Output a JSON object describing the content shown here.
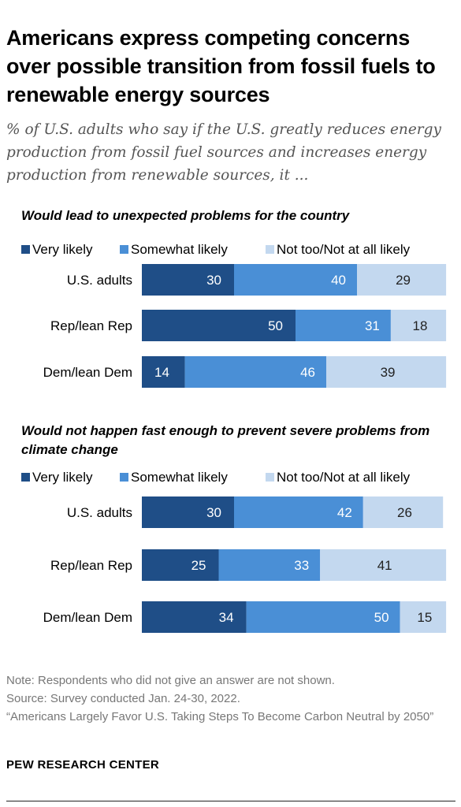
{
  "title": "Americans express competing concerns over possible transition from fossil fuels to renewable energy sources",
  "subtitle": "% of U.S. adults who say if the U.S. greatly reduces energy production from fossil fuel sources and increases energy production from renewable sources, it ...",
  "legend": {
    "very": "Very likely",
    "somewhat": "Somewhat likely",
    "not": "Not too/Not at all likely"
  },
  "colors": {
    "very": "#1f4e87",
    "somewhat": "#4a8fd6",
    "not": "#c3d8ef"
  },
  "chart_data": [
    {
      "type": "bar",
      "stacked": true,
      "orientation": "horizontal",
      "title": "Would lead to unexpected problems for the country",
      "categories": [
        "U.S. adults",
        "Rep/lean Rep",
        "Dem/lean Dem"
      ],
      "series": [
        {
          "name": "Very likely",
          "values": [
            30,
            50,
            14
          ]
        },
        {
          "name": "Somewhat likely",
          "values": [
            40,
            31,
            46
          ]
        },
        {
          "name": "Not too/Not at all likely",
          "values": [
            29,
            18,
            39
          ]
        }
      ],
      "xlim": [
        0,
        100
      ],
      "legend_position": "top"
    },
    {
      "type": "bar",
      "stacked": true,
      "orientation": "horizontal",
      "title": "Would not happen fast enough to prevent severe problems from climate change",
      "categories": [
        "U.S. adults",
        "Rep/lean Rep",
        "Dem/lean Dem"
      ],
      "series": [
        {
          "name": "Very likely",
          "values": [
            30,
            25,
            34
          ]
        },
        {
          "name": "Somewhat likely",
          "values": [
            42,
            33,
            50
          ]
        },
        {
          "name": "Not too/Not at all likely",
          "values": [
            26,
            41,
            15
          ]
        }
      ],
      "xlim": [
        0,
        100
      ],
      "legend_position": "top"
    }
  ],
  "notes": {
    "note": "Note: Respondents who did not give an answer are not shown.",
    "source": "Source: Survey conducted Jan. 24-30, 2022.",
    "report": "“Americans Largely Favor U.S. Taking Steps To Become Carbon Neutral by 2050”"
  },
  "org": "PEW RESEARCH CENTER"
}
